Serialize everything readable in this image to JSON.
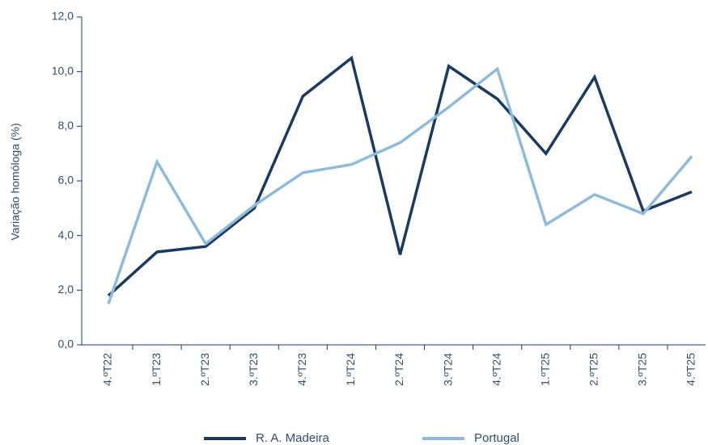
{
  "chart_data": {
    "type": "line",
    "y_label": "Variação homóloga (%)",
    "categories": [
      "4.ºT22",
      "1.ºT23",
      "2.ºT23",
      "3.ºT23",
      "4.ºT23",
      "1.ºT24",
      "2.ºT24",
      "3.ºT24",
      "4.ºT24",
      "1.ºT25",
      "2.ºT25",
      "3.ºT25",
      "4.ºT25"
    ],
    "series": [
      {
        "name": "R. A. Madeira",
        "color": "#1b3a60",
        "values": [
          1.8,
          3.4,
          3.6,
          5.0,
          9.1,
          10.5,
          3.3,
          10.2,
          9.0,
          7.0,
          9.8,
          4.9,
          5.6
        ]
      },
      {
        "name": "Portugal",
        "color": "#8fbbdb",
        "values": [
          1.5,
          6.7,
          3.7,
          5.1,
          6.3,
          6.6,
          7.4,
          8.7,
          10.1,
          4.4,
          5.5,
          4.8,
          6.9
        ]
      }
    ],
    "ylim": [
      0,
      12
    ],
    "yticks": [
      {
        "value": 0,
        "label": "0,0"
      },
      {
        "value": 2,
        "label": "2,0"
      },
      {
        "value": 4,
        "label": "4,0"
      },
      {
        "value": 6,
        "label": "6,0"
      },
      {
        "value": 8,
        "label": "8,0"
      },
      {
        "value": 10,
        "label": "10,0"
      },
      {
        "value": 12,
        "label": "12,0"
      }
    ],
    "grid": false
  }
}
